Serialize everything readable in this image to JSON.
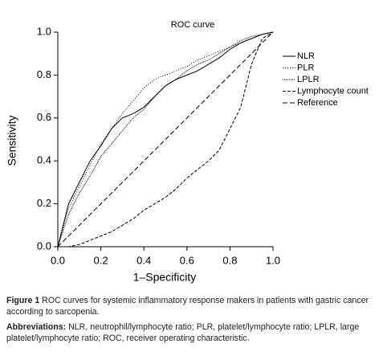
{
  "chart_data": {
    "type": "line",
    "title": "ROC curve",
    "xlabel": "1–Specificity",
    "ylabel": "Sensitivity",
    "x": [
      0,
      0.05,
      0.1,
      0.15,
      0.2,
      0.25,
      0.3,
      0.35,
      0.4,
      0.45,
      0.5,
      0.55,
      0.6,
      0.65,
      0.7,
      0.75,
      0.8,
      0.85,
      0.9,
      0.95,
      1
    ],
    "xlim": [
      0,
      1
    ],
    "ylim": [
      0,
      1
    ],
    "xticks": [
      {
        "value": 0,
        "label": "0.0"
      },
      {
        "value": 0.2,
        "label": "0.2"
      },
      {
        "value": 0.4,
        "label": "0.4"
      },
      {
        "value": 0.6,
        "label": "0.6"
      },
      {
        "value": 0.8,
        "label": "0.8"
      },
      {
        "value": 1,
        "label": "1.0"
      }
    ],
    "yticks": [
      {
        "value": 0,
        "label": "0.0"
      },
      {
        "value": 0.2,
        "label": "0.2"
      },
      {
        "value": 0.4,
        "label": "0.4"
      },
      {
        "value": 0.6,
        "label": "0.6"
      },
      {
        "value": 0.8,
        "label": "0.8"
      },
      {
        "value": 1,
        "label": "1.0"
      }
    ],
    "series": [
      {
        "name": "NLR",
        "color": "#000000",
        "dash": "none",
        "values": [
          0,
          0.2,
          0.3,
          0.4,
          0.47,
          0.55,
          0.6,
          0.62,
          0.65,
          0.7,
          0.75,
          0.78,
          0.8,
          0.82,
          0.85,
          0.88,
          0.92,
          0.95,
          0.97,
          0.99,
          1
        ]
      },
      {
        "name": "PLR",
        "color": "#000000",
        "dash": "1 2",
        "values": [
          0,
          0.18,
          0.28,
          0.38,
          0.48,
          0.55,
          0.62,
          0.68,
          0.74,
          0.78,
          0.8,
          0.82,
          0.84,
          0.87,
          0.89,
          0.91,
          0.93,
          0.95,
          0.97,
          0.99,
          1
        ]
      },
      {
        "name": "LPLR",
        "color": "#000000",
        "dash": "1 1",
        "values": [
          0,
          0.15,
          0.25,
          0.33,
          0.42,
          0.48,
          0.54,
          0.6,
          0.64,
          0.7,
          0.75,
          0.78,
          0.82,
          0.85,
          0.87,
          0.9,
          0.93,
          0.96,
          0.98,
          0.99,
          1
        ]
      },
      {
        "name": "Lymphocyte count",
        "color": "#000000",
        "dash": "4 2",
        "values": [
          0,
          0,
          0.01,
          0.03,
          0.05,
          0.07,
          0.1,
          0.13,
          0.17,
          0.2,
          0.23,
          0.27,
          0.32,
          0.36,
          0.4,
          0.45,
          0.55,
          0.65,
          0.85,
          0.97,
          1
        ]
      },
      {
        "name": "Reference",
        "color": "#000000",
        "dash": "6 3",
        "values": [
          0,
          0.05,
          0.1,
          0.15,
          0.2,
          0.25,
          0.3,
          0.35,
          0.4,
          0.45,
          0.5,
          0.55,
          0.6,
          0.65,
          0.7,
          0.75,
          0.8,
          0.85,
          0.9,
          0.95,
          1
        ]
      }
    ]
  },
  "caption": {
    "label": "Figure 1",
    "text": "ROC curves for systemic inflammatory response makers in patients with gastric cancer according to sarcopenia."
  },
  "abbreviations": {
    "label": "Abbreviations:",
    "text": "NLR, neutrophil/lymphocyte ratio; PLR, platelet/lymphocyte ratio; LPLR, large platelet/lymphocyte ratio; ROC, receiver operating characteristic."
  }
}
